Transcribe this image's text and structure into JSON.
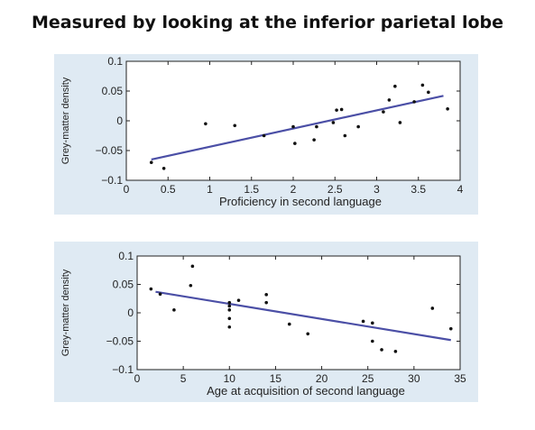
{
  "page_title": "Measured by looking at the inferior parietal lobe",
  "chart_data": [
    {
      "type": "scatter",
      "title": "",
      "xlabel": "Proficiency in second language",
      "ylabel": "Grey-matter density",
      "xlim": [
        0,
        4
      ],
      "ylim": [
        -0.1,
        0.1
      ],
      "x_ticks": [
        "0",
        "0.5",
        "1",
        "1.5",
        "2",
        "2.5",
        "3",
        "3.5",
        "4"
      ],
      "y_ticks": [
        "0.1",
        "0.05",
        "0",
        "−0.05",
        "−0.1"
      ],
      "points": [
        [
          0.3,
          -0.07
        ],
        [
          0.45,
          -0.08
        ],
        [
          0.95,
          -0.005
        ],
        [
          1.3,
          -0.008
        ],
        [
          1.65,
          -0.025
        ],
        [
          2.0,
          -0.01
        ],
        [
          2.02,
          -0.038
        ],
        [
          2.25,
          -0.032
        ],
        [
          2.28,
          -0.01
        ],
        [
          2.48,
          -0.003
        ],
        [
          2.52,
          0.018
        ],
        [
          2.58,
          0.019
        ],
        [
          2.62,
          -0.025
        ],
        [
          2.78,
          -0.01
        ],
        [
          3.08,
          0.015
        ],
        [
          3.15,
          0.035
        ],
        [
          3.22,
          0.058
        ],
        [
          3.28,
          -0.003
        ],
        [
          3.45,
          0.032
        ],
        [
          3.55,
          0.06
        ],
        [
          3.62,
          0.048
        ],
        [
          3.85,
          0.02
        ]
      ],
      "fit_line": {
        "x": [
          0.3,
          3.8
        ],
        "y": [
          -0.065,
          0.042
        ],
        "color": "#4b4fa6"
      },
      "point_color": "#111111",
      "grid": false
    },
    {
      "type": "scatter",
      "title": "",
      "xlabel": "Age at acquisition of second language",
      "ylabel": "Grey-matter density",
      "xlim": [
        0,
        35
      ],
      "ylim": [
        -0.1,
        0.1
      ],
      "x_ticks": [
        "0",
        "5",
        "10",
        "15",
        "20",
        "25",
        "30",
        "35"
      ],
      "y_ticks": [
        "0.1",
        "0.05",
        "0",
        "−0.05",
        "−0.1"
      ],
      "points": [
        [
          1.5,
          0.042
        ],
        [
          2.5,
          0.033
        ],
        [
          4.0,
          0.005
        ],
        [
          5.8,
          0.048
        ],
        [
          6.0,
          0.082
        ],
        [
          10.0,
          0.018
        ],
        [
          10.0,
          0.012
        ],
        [
          10.0,
          0.005
        ],
        [
          10.0,
          -0.01
        ],
        [
          10.0,
          -0.025
        ],
        [
          11.0,
          0.022
        ],
        [
          14.0,
          0.032
        ],
        [
          14.0,
          0.018
        ],
        [
          16.5,
          -0.02
        ],
        [
          18.5,
          -0.037
        ],
        [
          24.5,
          -0.015
        ],
        [
          25.5,
          -0.018
        ],
        [
          25.5,
          -0.05
        ],
        [
          26.5,
          -0.065
        ],
        [
          28.0,
          -0.068
        ],
        [
          32.0,
          0.008
        ],
        [
          34.0,
          -0.028
        ]
      ],
      "fit_line": {
        "x": [
          2.0,
          34.0
        ],
        "y": [
          0.037,
          -0.048
        ],
        "color": "#4b4fa6"
      },
      "point_color": "#111111",
      "grid": false
    }
  ]
}
